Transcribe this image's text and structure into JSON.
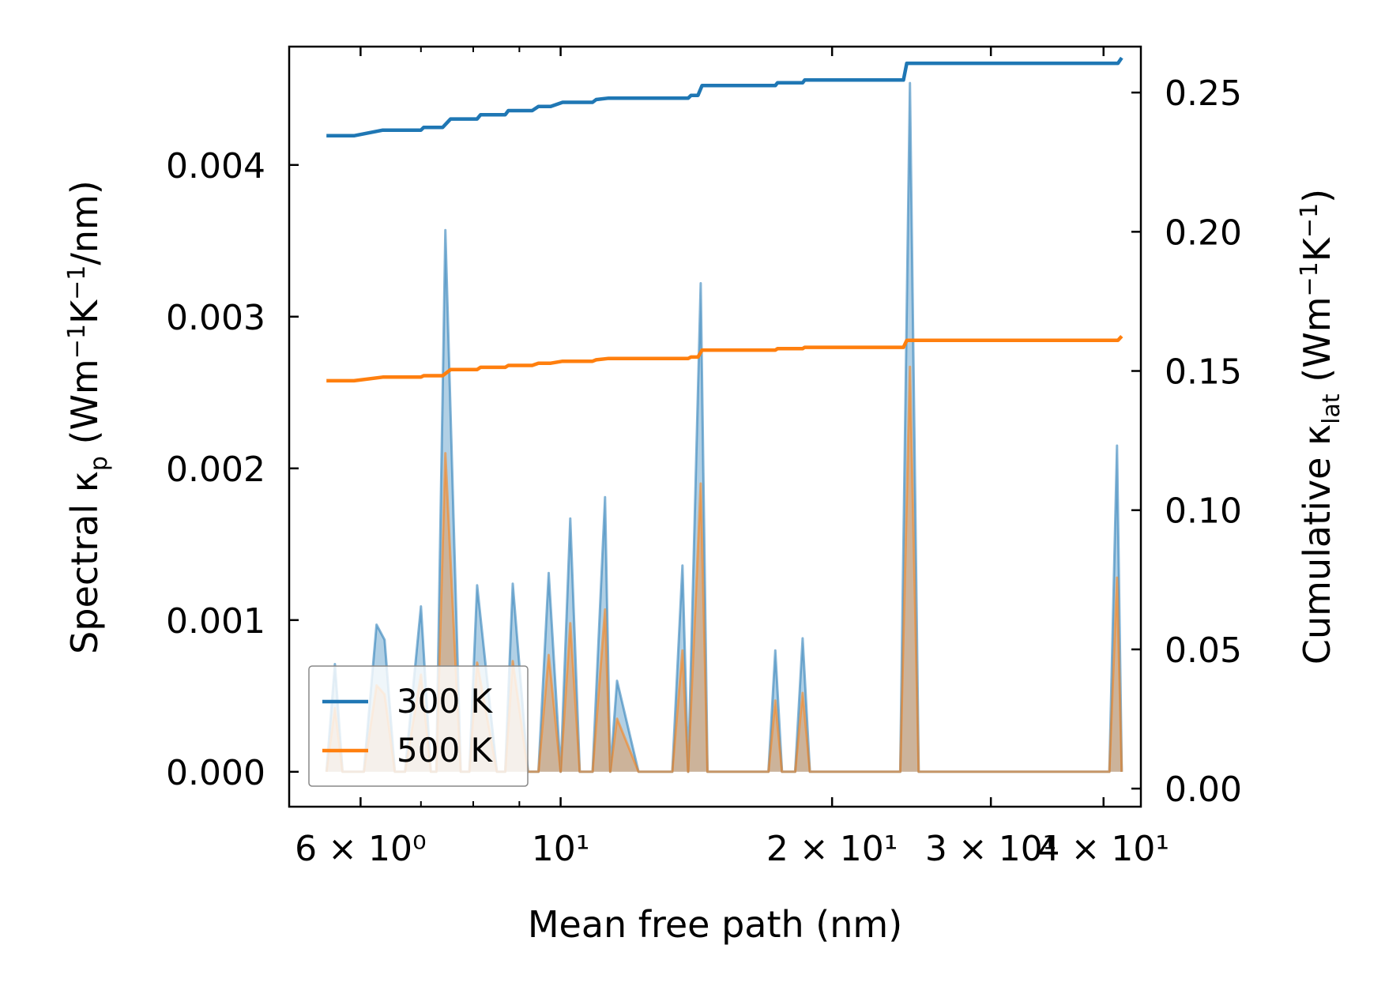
{
  "chart_data": {
    "type": "line",
    "xscale": "log",
    "xlabel": "Mean free path (nm)",
    "ylabel": "Spectral κp (Wm−1K−1/nm)",
    "ylabel2": "Cumulative κlat (Wm−1K−1)",
    "xlim": [
      5.0,
      44.0
    ],
    "ylim": [
      -0.00023,
      0.00478
    ],
    "ylim2": [
      -0.0065,
      0.2665
    ],
    "xticks": [
      {
        "value": 6,
        "label": "6 × 10⁰"
      },
      {
        "value": 10,
        "label": "10¹"
      },
      {
        "value": 20,
        "label": "2 × 10¹"
      },
      {
        "value": 30,
        "label": "3 × 10¹"
      },
      {
        "value": 40,
        "label": "4 × 10¹"
      }
    ],
    "yticks": [
      {
        "value": 0.0,
        "label": "0.000"
      },
      {
        "value": 0.001,
        "label": "0.001"
      },
      {
        "value": 0.002,
        "label": "0.002"
      },
      {
        "value": 0.003,
        "label": "0.003"
      },
      {
        "value": 0.004,
        "label": "0.004"
      }
    ],
    "yticks2": [
      {
        "value": 0.0,
        "label": "0.00"
      },
      {
        "value": 0.05,
        "label": "0.05"
      },
      {
        "value": 0.1,
        "label": "0.10"
      },
      {
        "value": 0.15,
        "label": "0.15"
      },
      {
        "value": 0.2,
        "label": "0.20"
      },
      {
        "value": 0.25,
        "label": "0.25"
      }
    ],
    "legend": {
      "position": "lower-left",
      "entries": [
        "300 K",
        "500 K"
      ]
    },
    "colors": {
      "s300": "#1f77b4",
      "s500": "#ff7f0e"
    },
    "spectral": [
      {
        "name": "300 K",
        "axis": "left",
        "x": [
          5.5,
          5.62,
          5.73,
          6.05,
          6.25,
          6.38,
          6.55,
          6.72,
          7.0,
          7.18,
          7.28,
          7.45,
          7.75,
          7.92,
          8.08,
          8.5,
          8.68,
          8.85,
          9.2,
          9.45,
          9.7,
          10.0,
          10.25,
          10.5,
          10.85,
          11.2,
          11.35,
          11.55,
          12.2,
          12.5,
          13.3,
          13.65,
          13.85,
          14.3,
          14.55,
          14.75,
          17.0,
          17.3,
          17.6,
          18.2,
          18.55,
          18.9,
          23.8,
          24.4,
          24.95,
          40.6,
          41.4,
          41.9
        ],
        "y": [
          0,
          0.00071,
          0,
          0,
          0.00097,
          0.00087,
          0,
          0,
          0.00109,
          0,
          0,
          0.00357,
          0,
          0,
          0.00123,
          0,
          0,
          0.00124,
          0,
          0,
          0.00131,
          0,
          0.00167,
          0,
          0,
          0.00181,
          0,
          0.0006,
          0,
          0,
          0,
          0.00136,
          0,
          0.00322,
          0,
          0,
          0,
          0.0008,
          0,
          0,
          0.00088,
          0,
          0,
          0.00454,
          0,
          0,
          0.00215,
          0
        ]
      },
      {
        "name": "500 K",
        "axis": "left",
        "x": [
          5.5,
          5.62,
          5.73,
          6.05,
          6.25,
          6.38,
          6.55,
          6.72,
          7.0,
          7.18,
          7.28,
          7.45,
          7.75,
          7.92,
          8.08,
          8.5,
          8.68,
          8.85,
          9.2,
          9.45,
          9.7,
          10.0,
          10.25,
          10.5,
          10.85,
          11.2,
          11.35,
          11.55,
          12.2,
          12.5,
          13.3,
          13.65,
          13.85,
          14.3,
          14.55,
          14.75,
          17.0,
          17.3,
          17.6,
          18.2,
          18.55,
          18.9,
          23.8,
          24.4,
          24.95,
          40.6,
          41.4,
          41.9
        ],
        "y": [
          0,
          0.00042,
          0,
          0,
          0.00057,
          0.00051,
          0,
          0,
          0.00064,
          0,
          0,
          0.0021,
          0,
          0,
          0.00072,
          0,
          0,
          0.00073,
          0,
          0,
          0.00077,
          0,
          0.00098,
          0,
          0,
          0.00107,
          0,
          0.00035,
          0,
          0,
          0,
          0.0008,
          0,
          0.0019,
          0,
          0,
          0,
          0.00047,
          0,
          0,
          0.00052,
          0,
          0,
          0.00267,
          0,
          0,
          0.00128,
          0
        ]
      }
    ],
    "cumulative": [
      {
        "name": "300 K",
        "axis": "right",
        "x": [
          5.5,
          5.9,
          6.35,
          7.0,
          7.05,
          7.4,
          7.55,
          8.08,
          8.15,
          8.68,
          8.75,
          9.3,
          9.45,
          9.75,
          10.05,
          10.85,
          10.95,
          11.3,
          13.85,
          13.95,
          14.2,
          14.35,
          17.3,
          17.4,
          18.55,
          18.65,
          24.0,
          24.2,
          41.5,
          41.9
        ],
        "y": [
          0.2345,
          0.2345,
          0.2365,
          0.2365,
          0.2375,
          0.2375,
          0.2405,
          0.2405,
          0.242,
          0.242,
          0.2435,
          0.2435,
          0.245,
          0.245,
          0.2465,
          0.2465,
          0.2475,
          0.248,
          0.248,
          0.249,
          0.249,
          0.2525,
          0.2525,
          0.2535,
          0.2535,
          0.2545,
          0.2545,
          0.2605,
          0.2605,
          0.2625
        ]
      },
      {
        "name": "500 K",
        "axis": "right",
        "x": [
          5.5,
          5.9,
          6.35,
          7.0,
          7.05,
          7.4,
          7.55,
          8.08,
          8.15,
          8.68,
          8.75,
          9.3,
          9.45,
          9.75,
          10.05,
          10.85,
          10.95,
          11.3,
          13.85,
          13.95,
          14.2,
          14.35,
          17.3,
          17.4,
          18.55,
          18.65,
          24.0,
          24.2,
          41.5,
          41.9
        ],
        "y": [
          0.1465,
          0.1465,
          0.1478,
          0.1478,
          0.1483,
          0.1483,
          0.1505,
          0.1505,
          0.1513,
          0.1513,
          0.152,
          0.152,
          0.1528,
          0.1528,
          0.1535,
          0.1535,
          0.154,
          0.1545,
          0.1545,
          0.155,
          0.155,
          0.1575,
          0.1575,
          0.158,
          0.158,
          0.1585,
          0.1585,
          0.161,
          0.161,
          0.1625
        ]
      }
    ]
  }
}
